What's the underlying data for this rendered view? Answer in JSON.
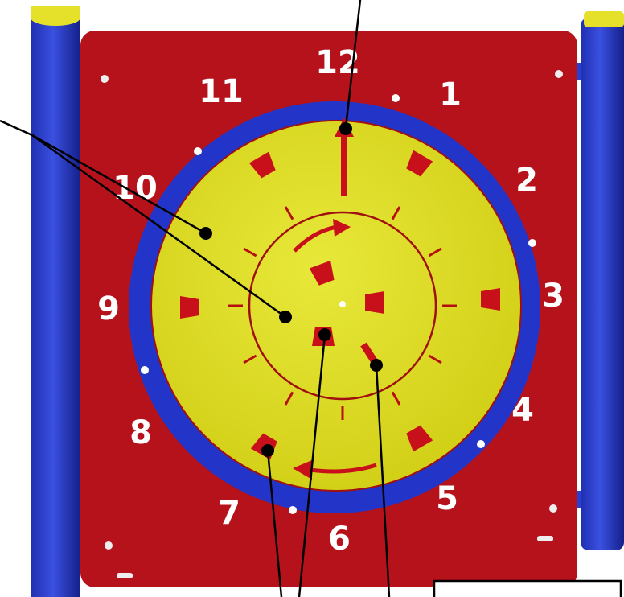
{
  "clock_face": {
    "numbers": [
      12,
      1,
      2,
      3,
      4,
      5,
      6,
      7,
      8,
      9,
      10,
      11
    ]
  }
}
